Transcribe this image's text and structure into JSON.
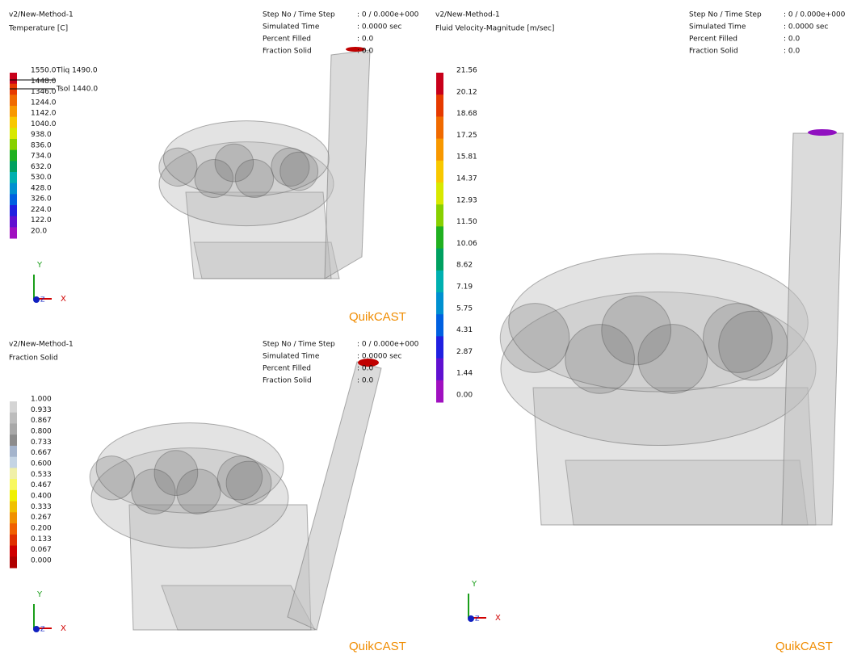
{
  "panels": [
    {
      "title": "v2/New-Method-1",
      "field": "Temperature [C]",
      "info": [
        {
          "label": "Step No / Time Step",
          "value": ": 0 / 0.000e+000"
        },
        {
          "label": "Simulated Time",
          "value": ": 0.0000 sec"
        },
        {
          "label": "Percent Filled",
          "value": ": 0.0"
        },
        {
          "label": "Fraction Solid",
          "value": ": 0.0"
        }
      ],
      "scale": {
        "labels": [
          "1550.0",
          "1448.0",
          "1346.0",
          "1244.0",
          "1142.0",
          "1040.0",
          "938.0",
          "836.0",
          "734.0",
          "632.0",
          "530.0",
          "428.0",
          "326.0",
          "224.0",
          "122.0",
          "20.0"
        ],
        "colors": [
          "#c8001a",
          "#e63a00",
          "#f06a00",
          "#f89800",
          "#f8c800",
          "#d8e800",
          "#88d000",
          "#20b020",
          "#00a060",
          "#00b0b0",
          "#0090d0",
          "#0060e0",
          "#2020e0",
          "#6010d0",
          "#a010c0"
        ]
      },
      "annotations": [
        "Tliq  1490.0",
        "Tsol  1440.0"
      ],
      "axes": {
        "y": "Y",
        "x": "X",
        "z": "Z"
      },
      "logo": "QuikCAST"
    },
    {
      "title": "v2/New-Method-1",
      "field": "Fraction Solid",
      "info": [
        {
          "label": "Step No / Time Step",
          "value": ": 0 / 0.000e+000"
        },
        {
          "label": "Simulated Time",
          "value": ": 0.0000 sec"
        },
        {
          "label": "Percent Filled",
          "value": ": 0.0"
        },
        {
          "label": "Fraction Solid",
          "value": ": 0.0"
        }
      ],
      "scale": {
        "labels": [
          "1.000",
          "0.933",
          "0.867",
          "0.800",
          "0.733",
          "0.667",
          "0.600",
          "0.533",
          "0.467",
          "0.400",
          "0.333",
          "0.267",
          "0.200",
          "0.133",
          "0.067",
          "0.000"
        ],
        "colors": [
          "#d4d4d4",
          "#bcbcbc",
          "#a8a8a8",
          "#8c8c8c",
          "#a4b4cc",
          "#c4d4e4",
          "#f0f0a8",
          "#f8f860",
          "#f0f000",
          "#f0c000",
          "#f09000",
          "#f06000",
          "#e03000",
          "#d00000",
          "#b00000"
        ]
      },
      "annotations": [],
      "axes": {
        "y": "Y",
        "x": "X",
        "z": "Z"
      },
      "logo": "QuikCAST"
    },
    {
      "title": "v2/New-Method-1",
      "field": "Fluid Velocity-Magnitude [m/sec]",
      "info": [
        {
          "label": "Step No / Time Step",
          "value": ": 0 / 0.000e+000"
        },
        {
          "label": "Simulated Time",
          "value": ": 0.0000 sec"
        },
        {
          "label": "Percent Filled",
          "value": ": 0.0"
        },
        {
          "label": "Fraction Solid",
          "value": ": 0.0"
        }
      ],
      "scale": {
        "labels": [
          "21.56",
          "20.12",
          "18.68",
          "17.25",
          "15.81",
          "14.37",
          "12.93",
          "11.50",
          "10.06",
          "8.62",
          "7.19",
          "5.75",
          "4.31",
          "2.87",
          "1.44",
          "0.00"
        ],
        "colors": [
          "#c8001a",
          "#e63a00",
          "#f06a00",
          "#f89800",
          "#f8c800",
          "#d8e800",
          "#88d000",
          "#20b020",
          "#00a060",
          "#00b0b0",
          "#0090d0",
          "#0060e0",
          "#2020e0",
          "#6010d0",
          "#a010c0"
        ]
      },
      "annotations": [],
      "axes": {
        "y": "Y",
        "x": "X",
        "z": "Z"
      },
      "logo": "QuikCAST"
    }
  ]
}
